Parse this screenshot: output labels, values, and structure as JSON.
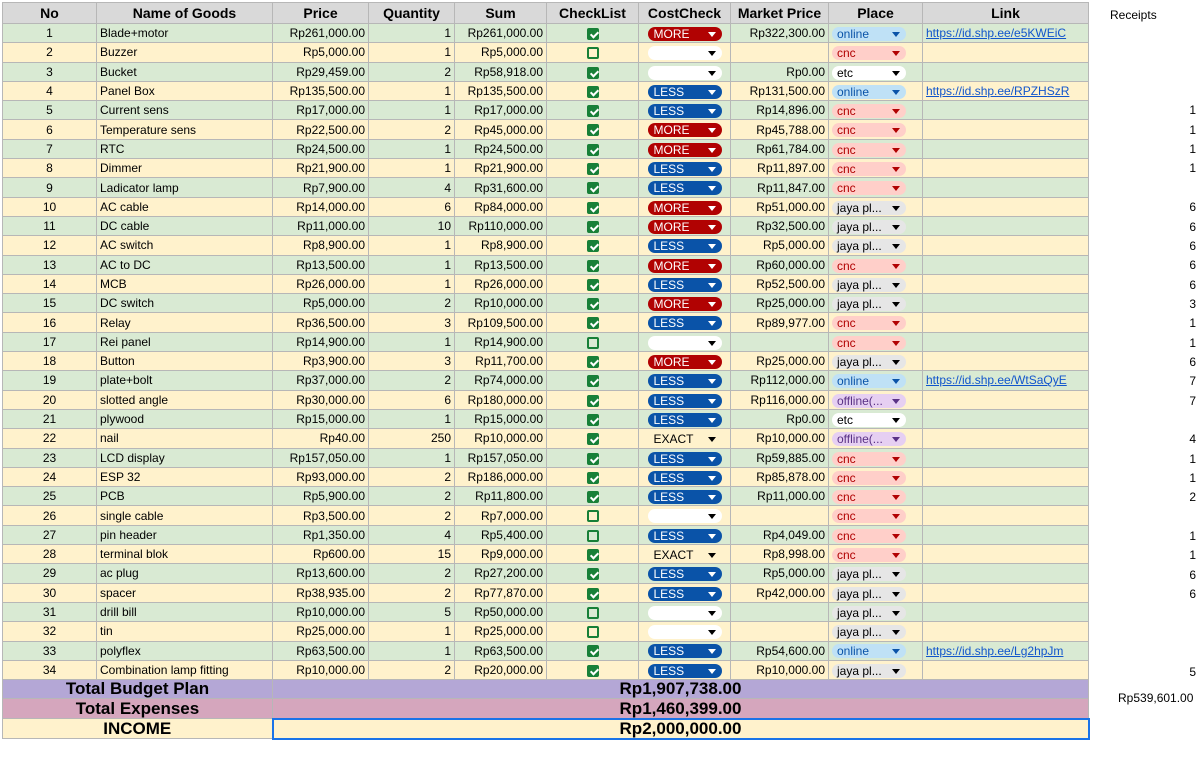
{
  "headers": {
    "no": "No",
    "name": "Name of Goods",
    "price": "Price",
    "quantity": "Quantity",
    "sum": "Sum",
    "checklist": "CheckList",
    "costcheck": "CostCheck",
    "market": "Market Price",
    "place": "Place",
    "link": "Link"
  },
  "receipts_label": "Receipts",
  "rows": [
    {
      "no": "1",
      "name": "Blade+motor",
      "price": "Rp261,000.00",
      "qty": "1",
      "sum": "Rp261,000.00",
      "checked": true,
      "cost": "MORE",
      "market": "Rp322,300.00",
      "place": "online",
      "link": "https://id.shp.ee/e5KWEiC",
      "receipt": ""
    },
    {
      "no": "2",
      "name": "Buzzer",
      "price": "Rp5,000.00",
      "qty": "1",
      "sum": "Rp5,000.00",
      "checked": false,
      "cost": "",
      "market": "",
      "place": "cnc",
      "link": "",
      "receipt": ""
    },
    {
      "no": "3",
      "name": "Bucket",
      "price": "Rp29,459.00",
      "qty": "2",
      "sum": "Rp58,918.00",
      "checked": true,
      "cost": "",
      "market": "Rp0.00",
      "place": "etc",
      "link": "",
      "receipt": ""
    },
    {
      "no": "4",
      "name": "Panel Box",
      "price": "Rp135,500.00",
      "qty": "1",
      "sum": "Rp135,500.00",
      "checked": true,
      "cost": "LESS",
      "market": "Rp131,500.00",
      "place": "online",
      "link": "https://id.shp.ee/RPZHSzR",
      "receipt": ""
    },
    {
      "no": "5",
      "name": "Current sens",
      "price": "Rp17,000.00",
      "qty": "1",
      "sum": "Rp17,000.00",
      "checked": true,
      "cost": "LESS",
      "market": "Rp14,896.00",
      "place": "cnc",
      "link": "",
      "receipt": "1"
    },
    {
      "no": "6",
      "name": "Temperature sens",
      "price": "Rp22,500.00",
      "qty": "2",
      "sum": "Rp45,000.00",
      "checked": true,
      "cost": "MORE",
      "market": "Rp45,788.00",
      "place": "cnc",
      "link": "",
      "receipt": "1"
    },
    {
      "no": "7",
      "name": "RTC",
      "price": "Rp24,500.00",
      "qty": "1",
      "sum": "Rp24,500.00",
      "checked": true,
      "cost": "MORE",
      "market": "Rp61,784.00",
      "place": "cnc",
      "link": "",
      "receipt": "1"
    },
    {
      "no": "8",
      "name": "Dimmer",
      "price": "Rp21,900.00",
      "qty": "1",
      "sum": "Rp21,900.00",
      "checked": true,
      "cost": "LESS",
      "market": "Rp11,897.00",
      "place": "cnc",
      "link": "",
      "receipt": "1"
    },
    {
      "no": "9",
      "name": "Ladicator lamp",
      "price": "Rp7,900.00",
      "qty": "4",
      "sum": "Rp31,600.00",
      "checked": true,
      "cost": "LESS",
      "market": "Rp11,847.00",
      "place": "cnc",
      "link": "",
      "receipt": ""
    },
    {
      "no": "10",
      "name": "AC cable",
      "price": "Rp14,000.00",
      "qty": "6",
      "sum": "Rp84,000.00",
      "checked": true,
      "cost": "MORE",
      "market": "Rp51,000.00",
      "place": "jaya pl...",
      "link": "",
      "receipt": "6"
    },
    {
      "no": "11",
      "name": "DC cable",
      "price": "Rp11,000.00",
      "qty": "10",
      "sum": "Rp110,000.00",
      "checked": true,
      "cost": "MORE",
      "market": "Rp32,500.00",
      "place": "jaya pl...",
      "link": "",
      "receipt": "6"
    },
    {
      "no": "12",
      "name": "AC switch",
      "price": "Rp8,900.00",
      "qty": "1",
      "sum": "Rp8,900.00",
      "checked": true,
      "cost": "LESS",
      "market": "Rp5,000.00",
      "place": "jaya pl...",
      "link": "",
      "receipt": "6"
    },
    {
      "no": "13",
      "name": "AC to DC",
      "price": "Rp13,500.00",
      "qty": "1",
      "sum": "Rp13,500.00",
      "checked": true,
      "cost": "MORE",
      "market": "Rp60,000.00",
      "place": "cnc",
      "link": "",
      "receipt": "6"
    },
    {
      "no": "14",
      "name": "MCB",
      "price": "Rp26,000.00",
      "qty": "1",
      "sum": "Rp26,000.00",
      "checked": true,
      "cost": "LESS",
      "market": "Rp52,500.00",
      "place": "jaya pl...",
      "link": "",
      "receipt": "6"
    },
    {
      "no": "15",
      "name": "DC switch",
      "price": "Rp5,000.00",
      "qty": "2",
      "sum": "Rp10,000.00",
      "checked": true,
      "cost": "MORE",
      "market": "Rp25,000.00",
      "place": "jaya pl...",
      "link": "",
      "receipt": "3"
    },
    {
      "no": "16",
      "name": "Relay",
      "price": "Rp36,500.00",
      "qty": "3",
      "sum": "Rp109,500.00",
      "checked": true,
      "cost": "LESS",
      "market": "Rp89,977.00",
      "place": "cnc",
      "link": "",
      "receipt": "1"
    },
    {
      "no": "17",
      "name": "Rei panel",
      "price": "Rp14,900.00",
      "qty": "1",
      "sum": "Rp14,900.00",
      "checked": false,
      "cost": "",
      "market": "",
      "place": "cnc",
      "link": "",
      "receipt": "1"
    },
    {
      "no": "18",
      "name": "Button",
      "price": "Rp3,900.00",
      "qty": "3",
      "sum": "Rp11,700.00",
      "checked": true,
      "cost": "MORE",
      "market": "Rp25,000.00",
      "place": "jaya pl...",
      "link": "",
      "receipt": "6"
    },
    {
      "no": "19",
      "name": "plate+bolt",
      "price": "Rp37,000.00",
      "qty": "2",
      "sum": "Rp74,000.00",
      "checked": true,
      "cost": "LESS",
      "market": "Rp112,000.00",
      "place": "online",
      "link": "https://id.shp.ee/WtSaQyE",
      "receipt": "7"
    },
    {
      "no": "20",
      "name": "slotted angle",
      "price": "Rp30,000.00",
      "qty": "6",
      "sum": "Rp180,000.00",
      "checked": true,
      "cost": "LESS",
      "market": "Rp116,000.00",
      "place": "offline(...",
      "link": "",
      "receipt": "7"
    },
    {
      "no": "21",
      "name": "plywood",
      "price": "Rp15,000.00",
      "qty": "1",
      "sum": "Rp15,000.00",
      "checked": true,
      "cost": "LESS",
      "market": "Rp0.00",
      "place": "etc",
      "link": "",
      "receipt": ""
    },
    {
      "no": "22",
      "name": "nail",
      "price": "Rp40.00",
      "qty": "250",
      "sum": "Rp10,000.00",
      "checked": true,
      "cost": "EXACT",
      "market": "Rp10,000.00",
      "place": "offline(...",
      "link": "",
      "receipt": "4"
    },
    {
      "no": "23",
      "name": "LCD display",
      "price": "Rp157,050.00",
      "qty": "1",
      "sum": "Rp157,050.00",
      "checked": true,
      "cost": "LESS",
      "market": "Rp59,885.00",
      "place": "cnc",
      "link": "",
      "receipt": "1"
    },
    {
      "no": "24",
      "name": "ESP 32",
      "price": "Rp93,000.00",
      "qty": "2",
      "sum": "Rp186,000.00",
      "checked": true,
      "cost": "LESS",
      "market": "Rp85,878.00",
      "place": "cnc",
      "link": "",
      "receipt": "1"
    },
    {
      "no": "25",
      "name": "PCB",
      "price": "Rp5,900.00",
      "qty": "2",
      "sum": "Rp11,800.00",
      "checked": true,
      "cost": "LESS",
      "market": "Rp11,000.00",
      "place": "cnc",
      "link": "",
      "receipt": "2"
    },
    {
      "no": "26",
      "name": "single cable",
      "price": "Rp3,500.00",
      "qty": "2",
      "sum": "Rp7,000.00",
      "checked": false,
      "cost": "",
      "market": "",
      "place": "cnc",
      "link": "",
      "receipt": ""
    },
    {
      "no": "27",
      "name": "pin header",
      "price": "Rp1,350.00",
      "qty": "4",
      "sum": "Rp5,400.00",
      "checked": false,
      "cost": "LESS",
      "market": "Rp4,049.00",
      "place": "cnc",
      "link": "",
      "receipt": "1"
    },
    {
      "no": "28",
      "name": "terminal blok",
      "price": "Rp600.00",
      "qty": "15",
      "sum": "Rp9,000.00",
      "checked": true,
      "cost": "EXACT",
      "market": "Rp8,998.00",
      "place": "cnc",
      "link": "",
      "receipt": "1"
    },
    {
      "no": "29",
      "name": "ac plug",
      "price": "Rp13,600.00",
      "qty": "2",
      "sum": "Rp27,200.00",
      "checked": true,
      "cost": "LESS",
      "market": "Rp5,000.00",
      "place": "jaya pl...",
      "link": "",
      "receipt": "6"
    },
    {
      "no": "30",
      "name": "spacer",
      "price": "Rp38,935.00",
      "qty": "2",
      "sum": "Rp77,870.00",
      "checked": true,
      "cost": "LESS",
      "market": "Rp42,000.00",
      "place": "jaya pl...",
      "link": "",
      "receipt": "6"
    },
    {
      "no": "31",
      "name": "drill bill",
      "price": "Rp10,000.00",
      "qty": "5",
      "sum": "Rp50,000.00",
      "checked": false,
      "cost": "",
      "market": "",
      "place": "jaya pl...",
      "link": "",
      "receipt": ""
    },
    {
      "no": "32",
      "name": "tin",
      "price": "Rp25,000.00",
      "qty": "1",
      "sum": "Rp25,000.00",
      "checked": false,
      "cost": "",
      "market": "",
      "place": "jaya pl...",
      "link": "",
      "receipt": ""
    },
    {
      "no": "33",
      "name": "polyflex",
      "price": "Rp63,500.00",
      "qty": "1",
      "sum": "Rp63,500.00",
      "checked": true,
      "cost": "LESS",
      "market": "Rp54,600.00",
      "place": "online",
      "link": "https://id.shp.ee/Lg2hpJm",
      "receipt": ""
    },
    {
      "no": "34",
      "name": "Combination lamp fitting",
      "price": "Rp10,000.00",
      "qty": "2",
      "sum": "Rp20,000.00",
      "checked": true,
      "cost": "LESS",
      "market": "Rp10,000.00",
      "place": "jaya pl...",
      "link": "",
      "receipt": "5"
    }
  ],
  "totals": {
    "budget_label": "Total Budget Plan",
    "budget_value": "Rp1,907,738.00",
    "expenses_label": "Total Expenses",
    "expenses_value": "Rp1,460,399.00",
    "income_label": "INCOME",
    "income_value": "Rp2,000,000.00",
    "receipts_total": "Rp539,601.00"
  },
  "colors": {
    "more": "#b10202",
    "less": "#0a53a8",
    "row_green": "#d9ead3",
    "row_yellow": "#fff2cc",
    "budget_bg": "#b4a7d6",
    "expenses_bg": "#d5a6bd"
  }
}
